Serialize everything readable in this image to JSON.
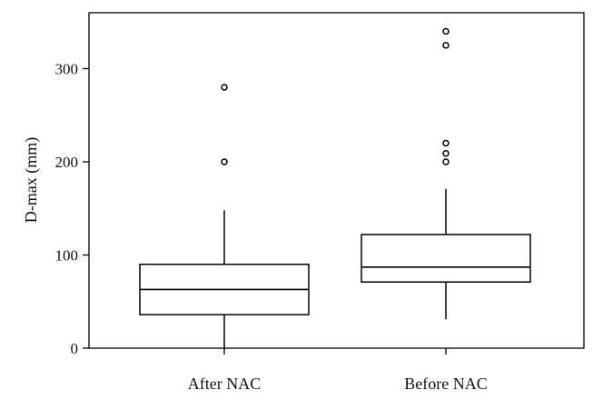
{
  "chart_data": {
    "type": "box",
    "ylabel": "D-max (mm)",
    "xlabel": "",
    "ylim": [
      0,
      360
    ],
    "yticks": [
      0,
      100,
      200,
      300
    ],
    "grid": false,
    "categories": [
      "After NAC",
      "Before NAC"
    ],
    "boxes": [
      {
        "name": "After NAC",
        "whisker_low": 0,
        "q1": 36,
        "median": 63,
        "q3": 90,
        "whisker_high": 148,
        "outliers": [
          200,
          280
        ]
      },
      {
        "name": "Before NAC",
        "whisker_low": 31,
        "q1": 71,
        "median": 87,
        "q3": 122,
        "whisker_high": 171,
        "outliers": [
          200,
          209,
          220,
          325,
          340
        ]
      }
    ]
  }
}
